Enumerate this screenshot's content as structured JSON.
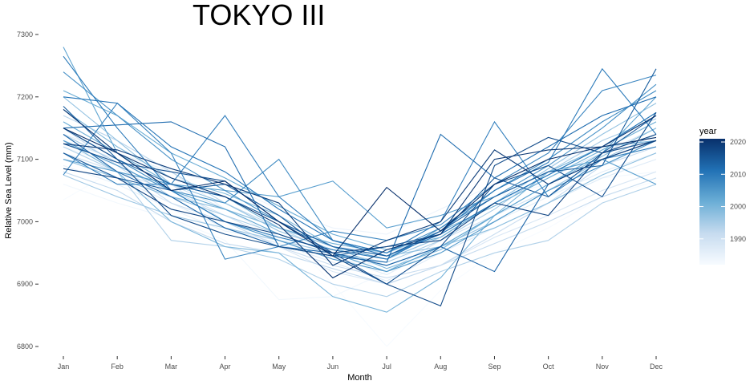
{
  "chart_data": {
    "type": "line",
    "title": "TOKYO III",
    "xlabel": "Month",
    "ylabel": "Relative Sea Level (mm)",
    "categories": [
      "Jan",
      "Feb",
      "Mar",
      "Apr",
      "May",
      "Jun",
      "Jul",
      "Aug",
      "Sep",
      "Oct",
      "Nov",
      "Dec"
    ],
    "ylim": [
      6780,
      7310
    ],
    "yticks": [
      6800,
      6900,
      7000,
      7100,
      7200,
      7300
    ],
    "grid": false,
    "legend": {
      "title": "year",
      "position": "right",
      "type": "colorbar",
      "range": [
        1982,
        2021
      ],
      "ticks": [
        1990,
        2000,
        2010,
        2020
      ],
      "color_low": "#f7fbff",
      "color_high": "#08306b"
    },
    "series": [
      {
        "year": 1982,
        "values": [
          7035,
          7085,
          7060,
          7080,
          6990,
          6900,
          6800,
          6890,
          6950,
          6990,
          7040,
          7065
        ]
      },
      {
        "year": 1983,
        "values": [
          7060,
          7030,
          7005,
          6970,
          6875,
          6880,
          6920,
          6990,
          7040,
          7060,
          7070,
          7080
        ]
      },
      {
        "year": 1984,
        "values": [
          7120,
          7090,
          7080,
          7060,
          7020,
          6990,
          6980,
          7020,
          7060,
          7090,
          7120,
          7160
        ]
      },
      {
        "year": 1985,
        "values": [
          7090,
          7060,
          7020,
          6985,
          6970,
          6940,
          6930,
          6960,
          7010,
          7060,
          7100,
          7130
        ]
      },
      {
        "year": 1986,
        "values": [
          7140,
          7110,
          7080,
          7020,
          6975,
          6945,
          6915,
          6960,
          7000,
          7040,
          7080,
          7110
        ]
      },
      {
        "year": 1987,
        "values": [
          7100,
          7070,
          7030,
          6990,
          6965,
          6935,
          6905,
          6950,
          6990,
          7030,
          7070,
          7100
        ]
      },
      {
        "year": 1988,
        "values": [
          7130,
          7100,
          7060,
          7000,
          6960,
          6920,
          6900,
          6930,
          6975,
          7010,
          7050,
          7080
        ]
      },
      {
        "year": 1989,
        "values": [
          7160,
          7110,
          7060,
          7020,
          6990,
          6960,
          6950,
          6980,
          7030,
          7070,
          7110,
          7150
        ]
      },
      {
        "year": 1990,
        "values": [
          7110,
          7080,
          7050,
          7010,
          6970,
          6940,
          6920,
          6970,
          7010,
          7050,
          7090,
          7130
        ]
      },
      {
        "year": 1991,
        "values": [
          7150,
          7090,
          7030,
          7000,
          6960,
          6930,
          6910,
          6930,
          6980,
          7030,
          7090,
          7120
        ]
      },
      {
        "year": 1992,
        "values": [
          7080,
          7050,
          7000,
          6965,
          6950,
          6925,
          6900,
          6930,
          6965,
          7000,
          7040,
          7070
        ]
      },
      {
        "year": 1993,
        "values": [
          7170,
          7130,
          7080,
          7030,
          6990,
          6950,
          6930,
          6960,
          7000,
          7050,
          7090,
          7130
        ]
      },
      {
        "year": 1994,
        "values": [
          7120,
          7080,
          6970,
          6960,
          6940,
          6900,
          6880,
          6920,
          6950,
          6970,
          7030,
          7060
        ]
      },
      {
        "year": 1995,
        "values": [
          7140,
          7095,
          7040,
          7010,
          6980,
          6950,
          6935,
          6970,
          7020,
          7080,
          7130,
          7165
        ]
      },
      {
        "year": 1996,
        "values": [
          7075,
          7040,
          7010,
          6990,
          6970,
          6950,
          6930,
          6960,
          7000,
          7050,
          7100,
          7140
        ]
      },
      {
        "year": 1997,
        "values": [
          7200,
          7130,
          7060,
          7030,
          6985,
          6955,
          6940,
          6975,
          7030,
          7085,
          7140,
          7190
        ]
      },
      {
        "year": 1998,
        "values": [
          7100,
          7070,
          7040,
          7020,
          6990,
          6960,
          6945,
          6960,
          6990,
          7030,
          7075,
          7110
        ]
      },
      {
        "year": 1999,
        "values": [
          7180,
          7120,
          7070,
          7045,
          7010,
          6960,
          6925,
          6955,
          7010,
          7060,
          7105,
          7150
        ]
      },
      {
        "year": 2000,
        "values": [
          7130,
          7080,
          7000,
          6960,
          6950,
          6880,
          6855,
          6910,
          7010,
          7080,
          7120,
          7130
        ]
      },
      {
        "year": 2001,
        "values": [
          7160,
          7110,
          7060,
          7040,
          6990,
          6965,
          6950,
          6985,
          7025,
          7070,
          7115,
          7160
        ]
      },
      {
        "year": 2002,
        "values": [
          7210,
          7170,
          7110,
          7070,
          7025,
          6980,
          6955,
          6975,
          7030,
          7075,
          7120,
          7175
        ]
      },
      {
        "year": 2003,
        "values": [
          7280,
          7110,
          7050,
          7020,
          6980,
          6950,
          6920,
          6960,
          7010,
          7060,
          7110,
          7200
        ]
      },
      {
        "year": 2004,
        "values": [
          7100,
          7080,
          7060,
          7050,
          7040,
          7065,
          6990,
          7010,
          7040,
          7080,
          7100,
          7060
        ]
      },
      {
        "year": 2005,
        "values": [
          7130,
          7090,
          7050,
          7000,
          6970,
          6940,
          6920,
          6950,
          7000,
          7050,
          7090,
          7130
        ]
      },
      {
        "year": 2006,
        "values": [
          7240,
          7170,
          7100,
          7050,
          7000,
          6960,
          6940,
          6990,
          7040,
          7090,
          7150,
          7220
        ]
      },
      {
        "year": 2007,
        "values": [
          7150,
          7100,
          7050,
          7030,
          7100,
          6970,
          6950,
          6990,
          7050,
          7100,
          7160,
          7210
        ]
      },
      {
        "year": 2008,
        "values": [
          7075,
          7190,
          7110,
          6940,
          6960,
          6985,
          6970,
          6995,
          7060,
          7110,
          7210,
          7235
        ]
      },
      {
        "year": 2009,
        "values": [
          7110,
          7060,
          7060,
          7170,
          7040,
          6970,
          6950,
          7000,
          7160,
          7040,
          7100,
          7120
        ]
      },
      {
        "year": 2010,
        "values": [
          7265,
          7150,
          7050,
          7000,
          6975,
          6955,
          6940,
          6985,
          7050,
          7095,
          7245,
          7140
        ]
      },
      {
        "year": 2011,
        "values": [
          7200,
          7190,
          7120,
          7080,
          7020,
          6970,
          6945,
          6980,
          7030,
          7075,
          7120,
          7175
        ]
      },
      {
        "year": 2012,
        "values": [
          7150,
          7155,
          7160,
          7120,
          6960,
          6945,
          6935,
          7140,
          7070,
          7120,
          7170,
          7200
        ]
      },
      {
        "year": 2013,
        "values": [
          7140,
          7080,
          7040,
          6990,
          6960,
          6950,
          6930,
          6960,
          6920,
          7060,
          7100,
          7130
        ]
      },
      {
        "year": 2014,
        "values": [
          7185,
          7100,
          7060,
          7040,
          7000,
          6960,
          6945,
          6985,
          7040,
          7080,
          7090,
          7245
        ]
      },
      {
        "year": 2015,
        "values": [
          7110,
          7070,
          7050,
          7060,
          7010,
          6945,
          6960,
          6980,
          7070,
          7040,
          7110,
          7170
        ]
      },
      {
        "year": 2016,
        "values": [
          7125,
          7095,
          7080,
          7065,
          7000,
          6950,
          6900,
          6960,
          7060,
          7090,
          7040,
          7175
        ]
      },
      {
        "year": 2017,
        "values": [
          7150,
          7100,
          7010,
          6980,
          6960,
          6945,
          6900,
          6865,
          7090,
          7135,
          7110,
          7130
        ]
      },
      {
        "year": 2018,
        "values": [
          7085,
          7070,
          7020,
          7000,
          6980,
          6950,
          6960,
          6970,
          7030,
          7010,
          7110,
          7140
        ]
      },
      {
        "year": 2019,
        "values": [
          7125,
          7115,
          7085,
          7060,
          7030,
          6930,
          6970,
          7000,
          7115,
          7060,
          7100,
          7130
        ]
      },
      {
        "year": 2020,
        "values": [
          7180,
          7110,
          7070,
          7040,
          6995,
          6910,
          6955,
          6980,
          7100,
          7115,
          7120,
          7170
        ]
      },
      {
        "year": 2021,
        "values": [
          7150,
          7110,
          7050,
          7065,
          7000,
          6945,
          7055,
          6985,
          7060,
          7100,
          7120,
          7135
        ]
      }
    ]
  }
}
